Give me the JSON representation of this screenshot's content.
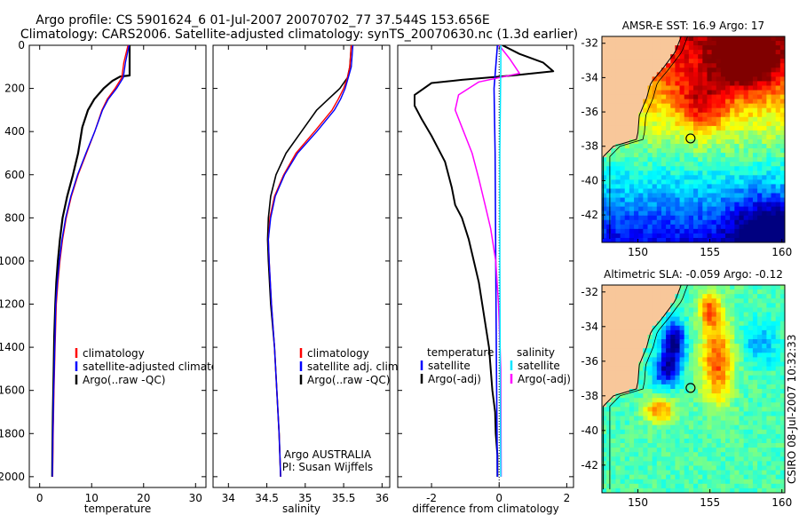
{
  "title_line1": "Argo profile: CS 5901624_6 01-Jul-2007 20070702_77 37.544S 153.656E",
  "title_line2": "Climatology: CARS2006. Satellite-adjusted climatology: synTS_20070630.nc (1.3d earlier)",
  "side_label": "CSIRO 08-Jul-2007 10:32:33",
  "colors": {
    "black": "#000000",
    "red": "#ff0000",
    "blue": "#0000ff",
    "cyan": "#00e5ff",
    "magenta": "#ff00ff",
    "land": "#f8c79a"
  },
  "chart_data": [
    {
      "type": "line",
      "id": "temp",
      "xlabel": "temperature",
      "ylabel": "",
      "xlim": [
        -2,
        32
      ],
      "ylim": [
        2050,
        0
      ],
      "xticks": [
        0,
        10,
        20,
        30
      ],
      "yticks": [
        0,
        200,
        400,
        600,
        800,
        1000,
        1200,
        1400,
        1600,
        1800,
        2000
      ],
      "legend": [
        {
          "label": "climatology",
          "color": "#ff0000"
        },
        {
          "label": "satellite-adjusted climatology",
          "color": "#0000ff"
        },
        {
          "label": "Argo(..raw -QC)",
          "color": "#000000"
        }
      ],
      "series": [
        {
          "name": "Argo(..raw -QC)",
          "color": "#000000",
          "width": 2.2,
          "points": [
            [
              17.3,
              0
            ],
            [
              17.3,
              140
            ],
            [
              15.5,
              145
            ],
            [
              14.0,
              165
            ],
            [
              12.3,
              200
            ],
            [
              10.5,
              250
            ],
            [
              9.3,
              300
            ],
            [
              8.2,
              380
            ],
            [
              7.4,
              500
            ],
            [
              6.4,
              600
            ],
            [
              5.3,
              700
            ],
            [
              4.4,
              800
            ],
            [
              3.9,
              900
            ],
            [
              3.5,
              1000
            ],
            [
              3.2,
              1100
            ],
            [
              3.0,
              1200
            ],
            [
              2.8,
              1350
            ],
            [
              2.7,
              1500
            ],
            [
              2.55,
              1700
            ],
            [
              2.45,
              1900
            ],
            [
              2.4,
              2000
            ]
          ]
        },
        {
          "name": "climatology",
          "color": "#ff0000",
          "width": 1.4,
          "points": [
            [
              17.0,
              0
            ],
            [
              16.2,
              80
            ],
            [
              15.8,
              150
            ],
            [
              14.5,
              200
            ],
            [
              13.0,
              250
            ],
            [
              12.0,
              300
            ],
            [
              10.6,
              400
            ],
            [
              9.0,
              500
            ],
            [
              7.4,
              600
            ],
            [
              6.1,
              700
            ],
            [
              5.1,
              800
            ],
            [
              4.4,
              900
            ],
            [
              3.9,
              1000
            ],
            [
              3.5,
              1100
            ],
            [
              3.2,
              1200
            ],
            [
              2.95,
              1400
            ],
            [
              2.75,
              1600
            ],
            [
              2.6,
              1800
            ],
            [
              2.5,
              2000
            ]
          ]
        },
        {
          "name": "satellite-adjusted climatology",
          "color": "#0000ff",
          "width": 1.4,
          "points": [
            [
              17.2,
              0
            ],
            [
              16.5,
              80
            ],
            [
              16.1,
              150
            ],
            [
              14.8,
              200
            ],
            [
              13.2,
              250
            ],
            [
              12.1,
              300
            ],
            [
              10.6,
              400
            ],
            [
              8.9,
              500
            ],
            [
              7.3,
              600
            ],
            [
              6.0,
              700
            ],
            [
              5.0,
              800
            ],
            [
              4.3,
              900
            ],
            [
              3.8,
              1000
            ],
            [
              3.4,
              1100
            ],
            [
              3.1,
              1200
            ],
            [
              2.9,
              1400
            ],
            [
              2.7,
              1600
            ],
            [
              2.55,
              1800
            ],
            [
              2.45,
              2000
            ]
          ]
        }
      ]
    },
    {
      "type": "line",
      "id": "sal",
      "xlabel": "salinity",
      "ylabel": "",
      "xlim": [
        33.8,
        36.1
      ],
      "ylim": [
        2050,
        0
      ],
      "xticks": [
        34,
        34.5,
        35,
        35.5,
        36
      ],
      "legend": [
        {
          "label": "climatology",
          "color": "#ff0000"
        },
        {
          "label": "satellite adj. clim.",
          "color": "#0000ff"
        },
        {
          "label": "Argo(..raw -QC)",
          "color": "#000000"
        }
      ],
      "annotation": [
        "Argo AUSTRALIA",
        "PI: Susan Wijffels"
      ],
      "series": [
        {
          "name": "Argo(..raw -QC)",
          "color": "#000000",
          "width": 1.6,
          "points": [
            [
              35.6,
              0
            ],
            [
              35.58,
              100
            ],
            [
              35.55,
              150
            ],
            [
              35.45,
              200
            ],
            [
              35.3,
              250
            ],
            [
              35.15,
              300
            ],
            [
              34.95,
              400
            ],
            [
              34.75,
              500
            ],
            [
              34.62,
              600
            ],
            [
              34.55,
              700
            ],
            [
              34.52,
              800
            ],
            [
              34.51,
              900
            ],
            [
              34.52,
              1000
            ],
            [
              34.55,
              1200
            ],
            [
              34.6,
              1400
            ],
            [
              34.63,
              1600
            ],
            [
              34.66,
              1800
            ],
            [
              34.68,
              2000
            ]
          ]
        },
        {
          "name": "climatology",
          "color": "#ff0000",
          "width": 1.4,
          "points": [
            [
              35.6,
              0
            ],
            [
              35.58,
              100
            ],
            [
              35.55,
              150
            ],
            [
              35.5,
              200
            ],
            [
              35.43,
              250
            ],
            [
              35.35,
              300
            ],
            [
              35.12,
              400
            ],
            [
              34.88,
              500
            ],
            [
              34.72,
              600
            ],
            [
              34.6,
              700
            ],
            [
              34.54,
              800
            ],
            [
              34.52,
              900
            ],
            [
              34.53,
              1000
            ],
            [
              34.56,
              1200
            ],
            [
              34.6,
              1400
            ],
            [
              34.63,
              1600
            ],
            [
              34.66,
              1800
            ],
            [
              34.68,
              2000
            ]
          ]
        },
        {
          "name": "satellite adj. clim.",
          "color": "#0000ff",
          "width": 1.4,
          "points": [
            [
              35.62,
              0
            ],
            [
              35.6,
              100
            ],
            [
              35.56,
              150
            ],
            [
              35.52,
              200
            ],
            [
              35.46,
              250
            ],
            [
              35.38,
              300
            ],
            [
              35.15,
              400
            ],
            [
              34.9,
              500
            ],
            [
              34.73,
              600
            ],
            [
              34.61,
              700
            ],
            [
              34.55,
              800
            ],
            [
              34.52,
              900
            ],
            [
              34.53,
              1000
            ],
            [
              34.56,
              1200
            ],
            [
              34.6,
              1400
            ],
            [
              34.63,
              1600
            ],
            [
              34.66,
              1800
            ],
            [
              34.68,
              2000
            ]
          ]
        }
      ]
    },
    {
      "type": "line",
      "id": "diff",
      "xlabel": "difference from climatology",
      "ylabel": "",
      "xlim": [
        -3.0,
        2.2
      ],
      "ylim": [
        2050,
        0
      ],
      "xticks": [
        -2,
        0,
        2
      ],
      "legend_left_header": "temperature",
      "legend_right_header": "salinity",
      "legend_left": [
        {
          "label": "satellite",
          "color": "#0000ff"
        },
        {
          "label": "Argo(-adj)",
          "color": "#000000"
        }
      ],
      "legend_right": [
        {
          "label": "satellite",
          "color": "#00e5ff"
        },
        {
          "label": "Argo(-adj)",
          "color": "#ff00ff"
        }
      ],
      "series": [
        {
          "name": "Argo(-adj) T",
          "color": "#000000",
          "width": 2.0,
          "points": [
            [
              0.1,
              0
            ],
            [
              0.6,
              40
            ],
            [
              1.3,
              80
            ],
            [
              1.6,
              120
            ],
            [
              0.4,
              140
            ],
            [
              -1.1,
              160
            ],
            [
              -2.0,
              175
            ],
            [
              -2.5,
              230
            ],
            [
              -2.5,
              280
            ],
            [
              -2.3,
              340
            ],
            [
              -2.0,
              420
            ],
            [
              -1.8,
              480
            ],
            [
              -1.6,
              540
            ],
            [
              -1.5,
              600
            ],
            [
              -1.4,
              660
            ],
            [
              -1.3,
              740
            ],
            [
              -1.1,
              800
            ],
            [
              -0.9,
              900
            ],
            [
              -0.75,
              1000
            ],
            [
              -0.6,
              1100
            ],
            [
              -0.5,
              1200
            ],
            [
              -0.4,
              1300
            ],
            [
              -0.3,
              1400
            ],
            [
              -0.25,
              1500
            ],
            [
              -0.2,
              1600
            ],
            [
              -0.12,
              1700
            ],
            [
              -0.1,
              1800
            ],
            [
              -0.05,
              1900
            ],
            [
              -0.05,
              2000
            ]
          ]
        },
        {
          "name": "satellite T",
          "color": "#0000ff",
          "width": 1.6,
          "points": [
            [
              -0.05,
              0
            ],
            [
              -0.1,
              100
            ],
            [
              -0.15,
              200
            ],
            [
              -0.12,
              500
            ],
            [
              -0.1,
              1000
            ],
            [
              -0.08,
              1500
            ],
            [
              -0.05,
              2000
            ]
          ]
        },
        {
          "name": "Argo(-adj) S",
          "color": "#ff00ff",
          "width": 1.5,
          "points": [
            [
              0.0,
              0
            ],
            [
              0.3,
              60
            ],
            [
              0.6,
              130
            ],
            [
              -0.6,
              170
            ],
            [
              -1.2,
              230
            ],
            [
              -1.3,
              300
            ],
            [
              -1.1,
              380
            ],
            [
              -0.8,
              500
            ],
            [
              -0.6,
              620
            ],
            [
              -0.4,
              750
            ],
            [
              -0.25,
              850
            ],
            [
              -0.1,
              1000
            ],
            [
              -0.02,
              1200
            ],
            [
              0.05,
              1500
            ],
            [
              0.06,
              2000
            ]
          ]
        },
        {
          "name": "satellite S",
          "color": "#00e5ff",
          "width": 1.5,
          "points": [
            [
              0.05,
              0
            ],
            [
              0.05,
              100
            ],
            [
              0.04,
              200
            ],
            [
              0.02,
              500
            ],
            [
              0.02,
              1000
            ],
            [
              0.03,
              1500
            ],
            [
              0.05,
              2000
            ]
          ]
        }
      ]
    },
    {
      "type": "heatmap",
      "id": "sst",
      "title": "AMSR-E SST: 16.9 Argo: 17",
      "xlim": [
        147.5,
        160.2
      ],
      "ylim": [
        -43.6,
        -31.6
      ],
      "xticks": [
        150,
        155,
        160
      ],
      "yticks": [
        -32,
        -34,
        -36,
        -38,
        -40,
        -42
      ],
      "marker": [
        153.656,
        -37.544
      ]
    },
    {
      "type": "heatmap",
      "id": "sla",
      "title": "Altimetric SLA: -0.059 Argo: -0.12",
      "xlim": [
        147.5,
        160.2
      ],
      "ylim": [
        -43.6,
        -31.6
      ],
      "xticks": [
        150,
        155,
        160
      ],
      "yticks": [
        -32,
        -34,
        -36,
        -38,
        -40,
        -42
      ],
      "marker": [
        153.656,
        -37.544
      ]
    }
  ]
}
